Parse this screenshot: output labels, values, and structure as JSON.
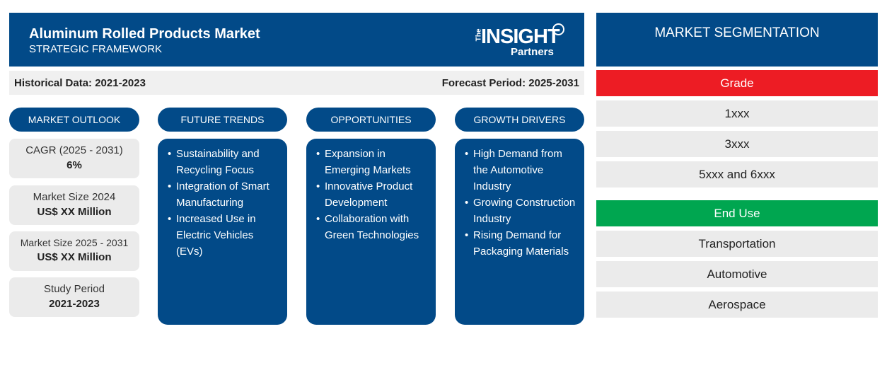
{
  "header": {
    "title": "Aluminum Rolled Products Market",
    "subtitle": "STRATEGIC FRAMEWORK",
    "logo": "The INSIGHT Partners"
  },
  "subheader": {
    "historical": "Historical Data: 2021-2023",
    "forecast": "Forecast Period: 2025-2031"
  },
  "columns": [
    {
      "title": "MARKET OUTLOOK"
    },
    {
      "title": "FUTURE TRENDS"
    },
    {
      "title": "OPPORTUNITIES"
    },
    {
      "title": "GROWTH DRIVERS"
    }
  ],
  "outlook": [
    {
      "label": "CAGR (2025 - 2031)",
      "value": "6%"
    },
    {
      "label": "Market Size 2024",
      "value": "US$ XX Million"
    },
    {
      "label": "Market Size 2025 - 2031",
      "value": "US$ XX Million"
    },
    {
      "label": "Study Period",
      "value": "2021-2023"
    }
  ],
  "trends": [
    "Sustainability and Recycling Focus",
    "Integration of Smart Manufacturing",
    "Increased Use in Electric Vehicles (EVs)"
  ],
  "opportunities": [
    "Expansion in Emerging Markets",
    "Innovative Product Development",
    "Collaboration with Green Technologies"
  ],
  "drivers": [
    "High Demand from the Automotive Industry",
    "Growing Construction Industry",
    "Rising Demand for Packaging Materials"
  ],
  "segmentation": {
    "title": "MARKET SEGMENTATION",
    "grade": {
      "title": "Grade",
      "color": "#ed1c24",
      "items": [
        "1xxx",
        "3xxx",
        "5xxx and 6xxx"
      ]
    },
    "end_use": {
      "title": "End Use",
      "color": "#00a650",
      "items": [
        "Transportation",
        "Automotive",
        "Aerospace"
      ]
    }
  }
}
